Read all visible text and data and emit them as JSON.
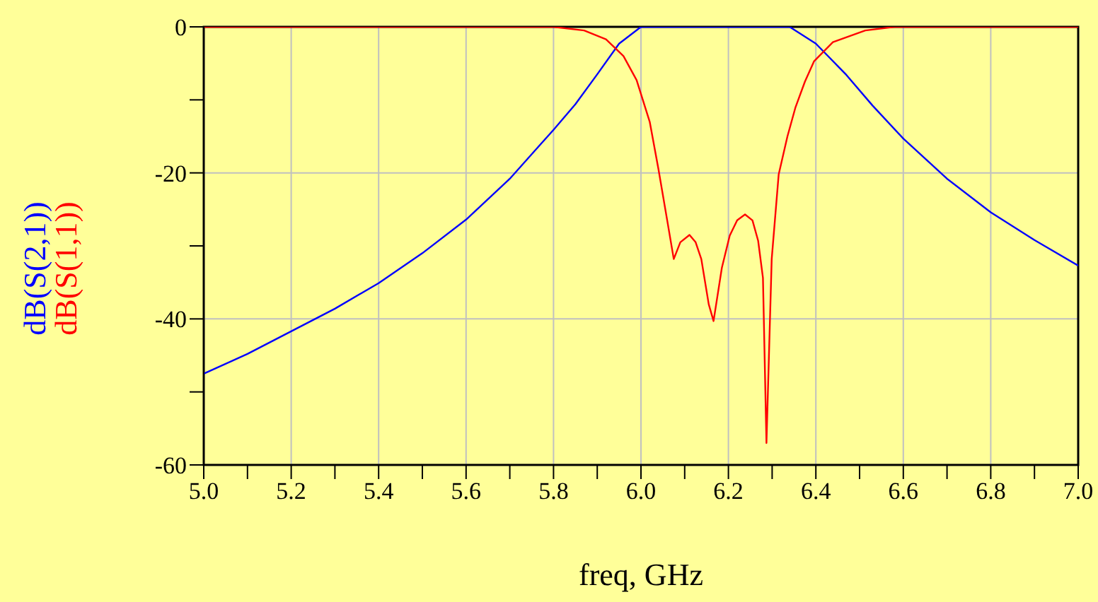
{
  "chart_data": {
    "type": "line",
    "xlabel": "freq, GHz",
    "xlim": [
      5.0,
      7.0
    ],
    "xticks": [
      {
        "value": 5.0,
        "label": "5.0"
      },
      {
        "value": 5.1,
        "label": null
      },
      {
        "value": 5.2,
        "label": "5.2"
      },
      {
        "value": 5.3,
        "label": null
      },
      {
        "value": 5.4,
        "label": "5.4"
      },
      {
        "value": 5.5,
        "label": null
      },
      {
        "value": 5.6,
        "label": "5.6"
      },
      {
        "value": 5.7,
        "label": null
      },
      {
        "value": 5.8,
        "label": "5.8"
      },
      {
        "value": 5.9,
        "label": null
      },
      {
        "value": 6.0,
        "label": "6.0"
      },
      {
        "value": 6.1,
        "label": null
      },
      {
        "value": 6.2,
        "label": "6.2"
      },
      {
        "value": 6.3,
        "label": null
      },
      {
        "value": 6.4,
        "label": "6.4"
      },
      {
        "value": 6.5,
        "label": null
      },
      {
        "value": 6.6,
        "label": "6.6"
      },
      {
        "value": 6.7,
        "label": null
      },
      {
        "value": 6.8,
        "label": "6.8"
      },
      {
        "value": 6.9,
        "label": null
      },
      {
        "value": 7.0,
        "label": "7.0"
      }
    ],
    "ylim": [
      -60,
      0
    ],
    "yticks": [
      -60,
      {
        "value": -50,
        "label": null
      },
      -40,
      {
        "value": -30,
        "label": null
      },
      -20,
      {
        "value": -10,
        "label": null
      },
      0
    ],
    "grid": true,
    "series": [
      {
        "name": "dB(S(2,1))",
        "color": "#0000ff",
        "x": [
          5.0,
          5.1,
          5.2,
          5.3,
          5.4,
          5.5,
          5.6,
          5.7,
          5.8,
          5.85,
          5.9,
          5.95,
          6.0,
          6.34,
          6.4,
          6.47,
          6.53,
          6.6,
          6.7,
          6.8,
          6.9,
          7.0
        ],
        "values": [
          -47.5,
          -44.8,
          -41.7,
          -38.6,
          -35.1,
          -31.0,
          -26.4,
          -20.8,
          -14.1,
          -10.6,
          -6.5,
          -2.3,
          0,
          0,
          -2.3,
          -6.6,
          -10.8,
          -15.3,
          -20.8,
          -25.4,
          -29.2,
          -32.7
        ]
      },
      {
        "name": "dB(S(1,1))",
        "color": "#ff0000",
        "x": [
          5.0,
          5.8,
          5.87,
          5.92,
          5.96,
          5.99,
          6.02,
          6.04,
          6.06,
          6.075,
          6.09,
          6.111,
          6.125,
          6.138,
          6.155,
          6.166,
          6.185,
          6.203,
          6.22,
          6.238,
          6.255,
          6.268,
          6.279,
          6.287,
          6.299,
          6.315,
          6.335,
          6.353,
          6.375,
          6.396,
          6.439,
          6.513,
          6.58,
          7.0
        ],
        "values": [
          0,
          0,
          -0.5,
          -1.7,
          -4.0,
          -7.3,
          -13.0,
          -19.5,
          -26.5,
          -31.8,
          -29.5,
          -28.5,
          -29.5,
          -31.8,
          -38.0,
          -40.3,
          -33.0,
          -28.6,
          -26.5,
          -25.7,
          -26.5,
          -29.3,
          -34.4,
          -57.0,
          -31.8,
          -20.2,
          -15.0,
          -11.1,
          -7.5,
          -4.7,
          -2.1,
          -0.5,
          0,
          0
        ]
      }
    ]
  }
}
